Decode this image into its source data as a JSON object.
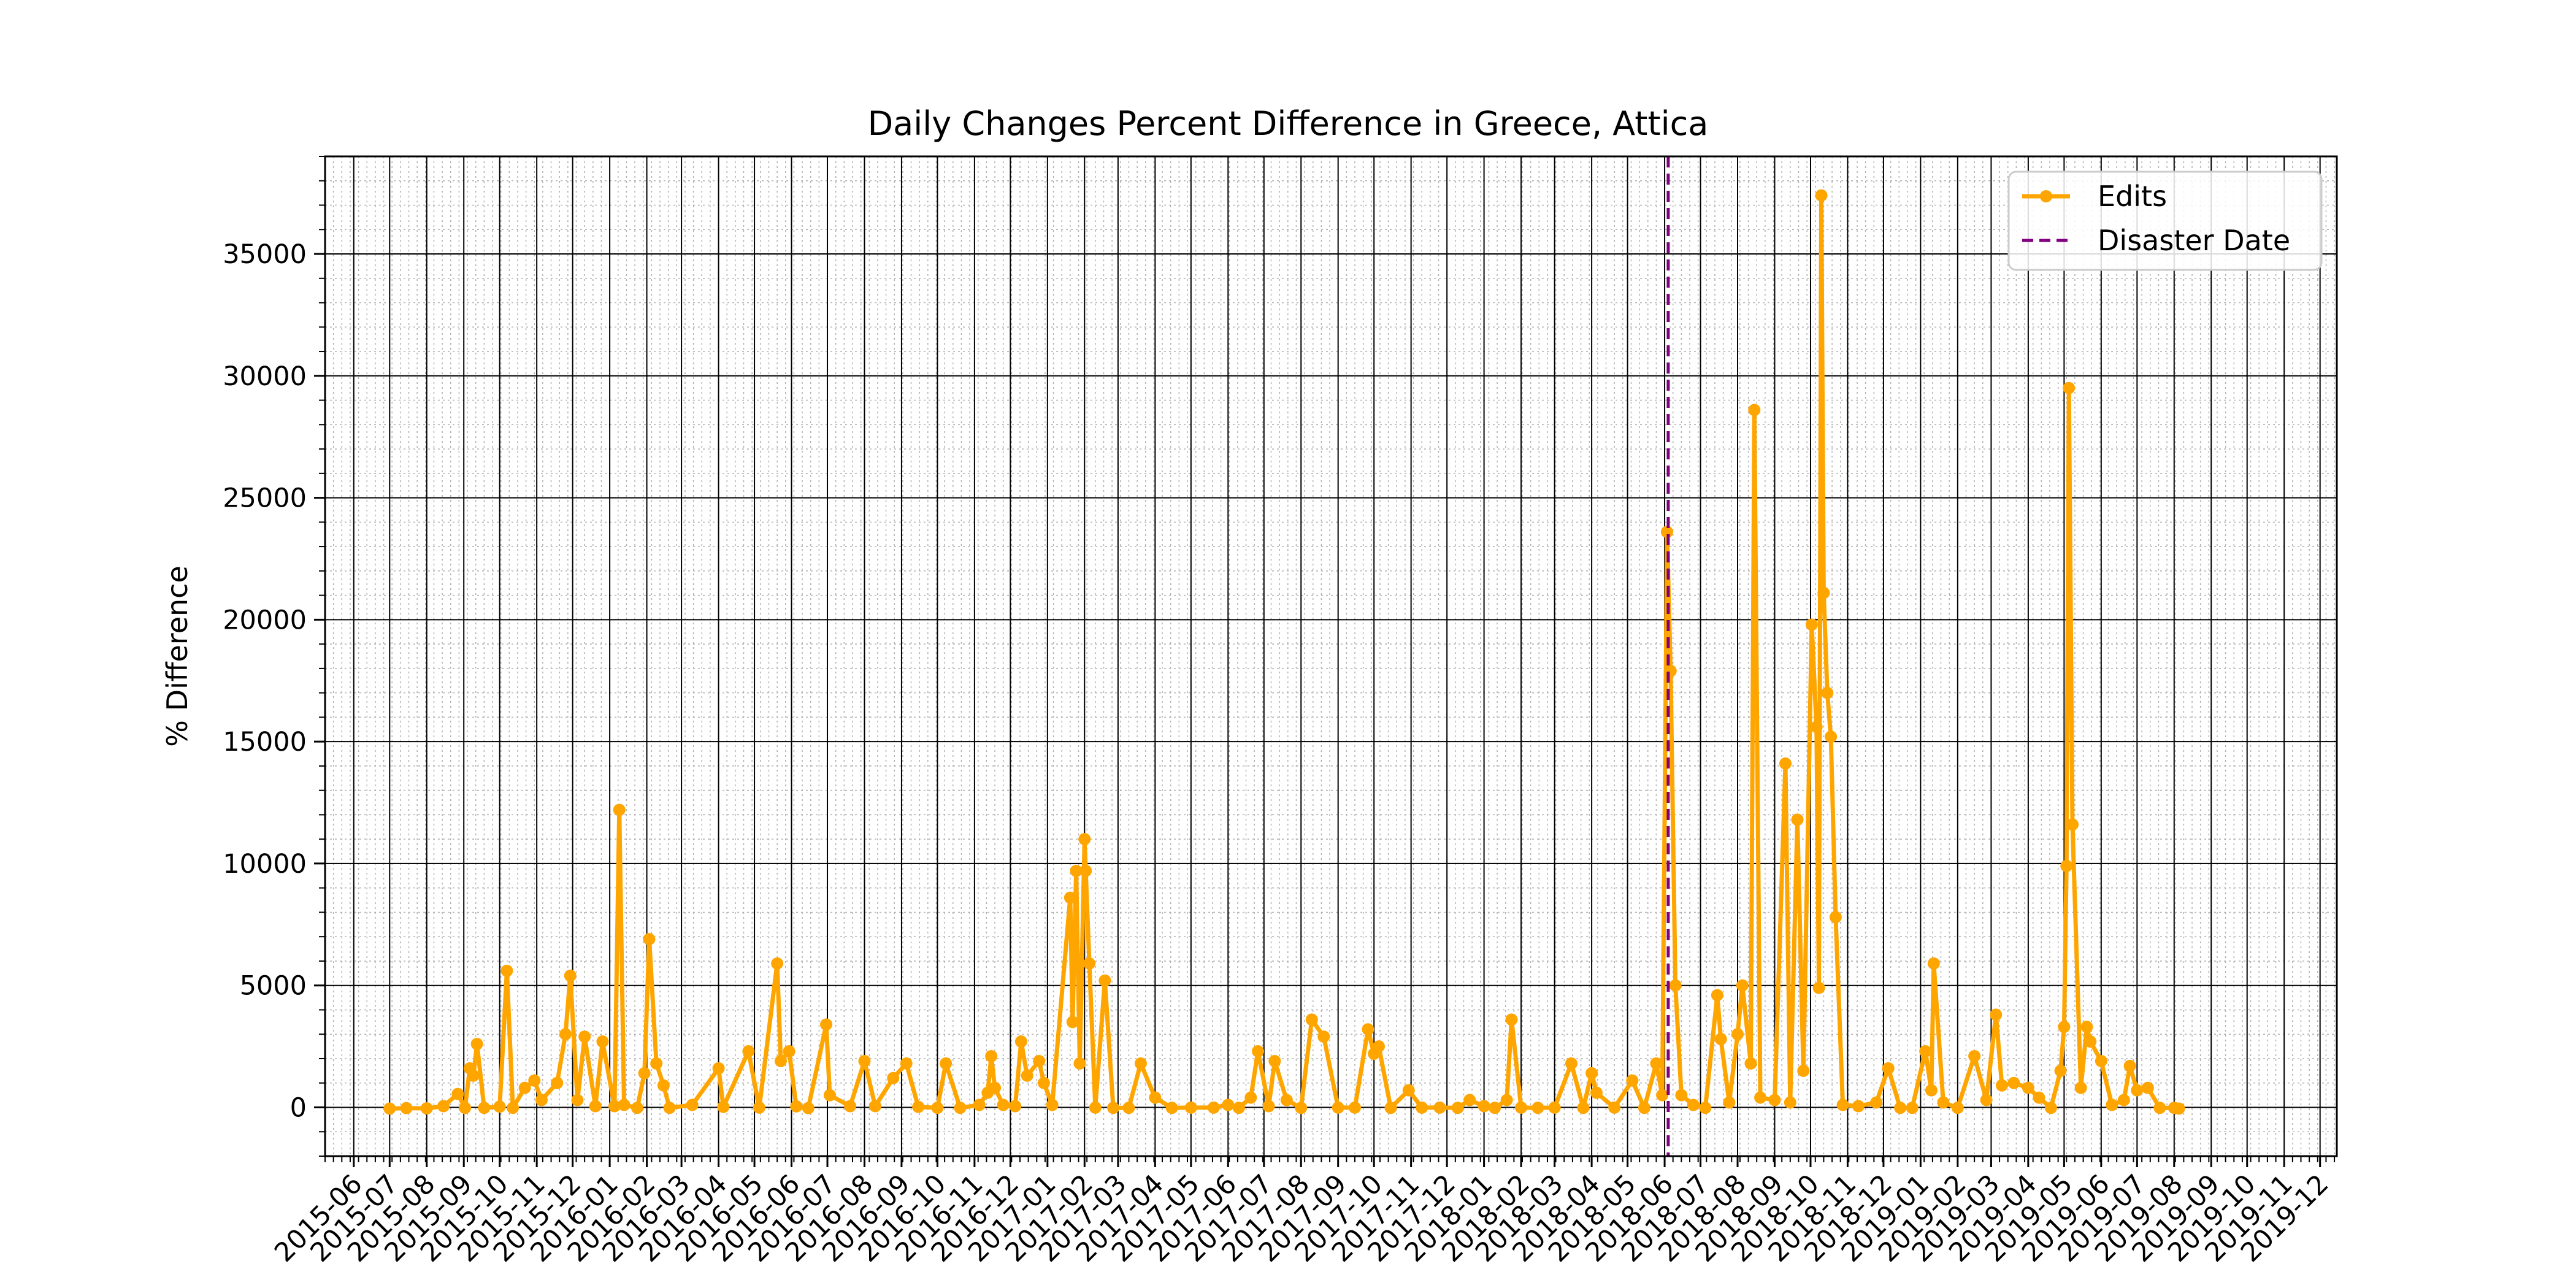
{
  "chart_data": {
    "type": "line",
    "title": "Daily Changes Percent Difference in Greece, Attica",
    "xlabel": "",
    "ylabel": "% Difference",
    "xlim": [
      "2015-05-08",
      "2019-12-15"
    ],
    "ylim": [
      -2000,
      39000
    ],
    "y_ticks": [
      0,
      5000,
      10000,
      15000,
      20000,
      25000,
      30000,
      35000
    ],
    "x_ticks": [
      "2015-06",
      "2015-07",
      "2015-08",
      "2015-09",
      "2015-10",
      "2015-11",
      "2015-12",
      "2016-01",
      "2016-02",
      "2016-03",
      "2016-04",
      "2016-05",
      "2016-06",
      "2016-07",
      "2016-08",
      "2016-09",
      "2016-10",
      "2016-11",
      "2016-12",
      "2017-01",
      "2017-02",
      "2017-03",
      "2017-04",
      "2017-05",
      "2017-06",
      "2017-07",
      "2017-08",
      "2017-09",
      "2017-10",
      "2017-11",
      "2017-12",
      "2018-01",
      "2018-02",
      "2018-03",
      "2018-04",
      "2018-05",
      "2018-06",
      "2018-07",
      "2018-08",
      "2018-09",
      "2018-10",
      "2018-11",
      "2018-12",
      "2019-01",
      "2019-02",
      "2019-03",
      "2019-04",
      "2019-05",
      "2019-06",
      "2019-07",
      "2019-08",
      "2019-09",
      "2019-10",
      "2019-11",
      "2019-12"
    ],
    "grid": true,
    "legend_position": "top-right",
    "series": [
      {
        "name": "Edits",
        "color": "#FFA500",
        "marker": "circle",
        "points": [
          [
            "2015-07-01",
            -50
          ],
          [
            "2015-07-15",
            -30
          ],
          [
            "2015-08-01",
            -40
          ],
          [
            "2015-08-15",
            50
          ],
          [
            "2015-08-27",
            550
          ],
          [
            "2015-09-02",
            -20
          ],
          [
            "2015-09-06",
            1600
          ],
          [
            "2015-09-09",
            1300
          ],
          [
            "2015-09-12",
            2600
          ],
          [
            "2015-09-18",
            -20
          ],
          [
            "2015-10-01",
            30
          ],
          [
            "2015-10-07",
            5600
          ],
          [
            "2015-10-12",
            -20
          ],
          [
            "2015-10-22",
            800
          ],
          [
            "2015-10-30",
            1100
          ],
          [
            "2015-11-05",
            300
          ],
          [
            "2015-11-18",
            1000
          ],
          [
            "2015-11-25",
            3000
          ],
          [
            "2015-11-29",
            5400
          ],
          [
            "2015-12-05",
            300
          ],
          [
            "2015-12-11",
            2900
          ],
          [
            "2015-12-20",
            50
          ],
          [
            "2015-12-26",
            2700
          ],
          [
            "2016-01-05",
            50
          ],
          [
            "2016-01-09",
            12200
          ],
          [
            "2016-01-13",
            100
          ],
          [
            "2016-01-24",
            -20
          ],
          [
            "2016-01-30",
            1400
          ],
          [
            "2016-02-03",
            6900
          ],
          [
            "2016-02-09",
            1800
          ],
          [
            "2016-02-15",
            900
          ],
          [
            "2016-02-20",
            -20
          ],
          [
            "2016-03-10",
            100
          ],
          [
            "2016-04-01",
            1600
          ],
          [
            "2016-04-05",
            20
          ],
          [
            "2016-04-26",
            2300
          ],
          [
            "2016-05-05",
            -10
          ],
          [
            "2016-05-20",
            5900
          ],
          [
            "2016-05-23",
            1900
          ],
          [
            "2016-05-30",
            2300
          ],
          [
            "2016-06-05",
            40
          ],
          [
            "2016-06-15",
            -30
          ],
          [
            "2016-06-30",
            3400
          ],
          [
            "2016-07-03",
            500
          ],
          [
            "2016-07-20",
            50
          ],
          [
            "2016-08-01",
            1900
          ],
          [
            "2016-08-10",
            50
          ],
          [
            "2016-08-25",
            1200
          ],
          [
            "2016-09-05",
            1800
          ],
          [
            "2016-09-15",
            20
          ],
          [
            "2016-10-01",
            -20
          ],
          [
            "2016-10-08",
            1800
          ],
          [
            "2016-10-20",
            -20
          ],
          [
            "2016-11-05",
            100
          ],
          [
            "2016-11-12",
            600
          ],
          [
            "2016-11-15",
            2100
          ],
          [
            "2016-11-18",
            800
          ],
          [
            "2016-11-25",
            100
          ],
          [
            "2016-12-05",
            50
          ],
          [
            "2016-12-10",
            2700
          ],
          [
            "2016-12-15",
            1300
          ],
          [
            "2016-12-25",
            1900
          ],
          [
            "2016-12-29",
            1000
          ],
          [
            "2017-01-05",
            100
          ],
          [
            "2017-01-20",
            8600
          ],
          [
            "2017-01-22",
            3500
          ],
          [
            "2017-01-25",
            9700
          ],
          [
            "2017-01-28",
            1800
          ],
          [
            "2017-02-01",
            11000
          ],
          [
            "2017-02-02",
            9700
          ],
          [
            "2017-02-05",
            5900
          ],
          [
            "2017-02-10",
            -10
          ],
          [
            "2017-02-18",
            5200
          ],
          [
            "2017-02-25",
            -20
          ],
          [
            "2017-03-10",
            -20
          ],
          [
            "2017-03-20",
            1800
          ],
          [
            "2017-04-01",
            400
          ],
          [
            "2017-04-15",
            -20
          ],
          [
            "2017-05-01",
            -10
          ],
          [
            "2017-05-20",
            -10
          ],
          [
            "2017-06-01",
            100
          ],
          [
            "2017-06-10",
            -20
          ],
          [
            "2017-06-20",
            400
          ],
          [
            "2017-06-26",
            2300
          ],
          [
            "2017-07-05",
            50
          ],
          [
            "2017-07-10",
            1900
          ],
          [
            "2017-07-20",
            300
          ],
          [
            "2017-08-01",
            -20
          ],
          [
            "2017-08-10",
            3600
          ],
          [
            "2017-08-20",
            2900
          ],
          [
            "2017-09-01",
            -10
          ],
          [
            "2017-09-15",
            -10
          ],
          [
            "2017-09-26",
            3200
          ],
          [
            "2017-10-01",
            2200
          ],
          [
            "2017-10-05",
            2500
          ],
          [
            "2017-10-15",
            -20
          ],
          [
            "2017-10-30",
            700
          ],
          [
            "2017-11-10",
            -10
          ],
          [
            "2017-11-25",
            -10
          ],
          [
            "2017-12-10",
            -20
          ],
          [
            "2017-12-20",
            300
          ],
          [
            "2018-01-01",
            50
          ],
          [
            "2018-01-10",
            -20
          ],
          [
            "2018-01-20",
            300
          ],
          [
            "2018-01-24",
            3600
          ],
          [
            "2018-02-01",
            -10
          ],
          [
            "2018-02-15",
            -20
          ],
          [
            "2018-03-01",
            -10
          ],
          [
            "2018-03-15",
            1800
          ],
          [
            "2018-03-25",
            -20
          ],
          [
            "2018-04-01",
            1400
          ],
          [
            "2018-04-05",
            600
          ],
          [
            "2018-04-20",
            -10
          ],
          [
            "2018-05-05",
            1100
          ],
          [
            "2018-05-15",
            -20
          ],
          [
            "2018-05-25",
            1800
          ],
          [
            "2018-05-30",
            500
          ],
          [
            "2018-06-03",
            23600
          ],
          [
            "2018-06-06",
            17900
          ],
          [
            "2018-06-10",
            5000
          ],
          [
            "2018-06-15",
            500
          ],
          [
            "2018-06-25",
            100
          ],
          [
            "2018-07-05",
            -20
          ],
          [
            "2018-07-15",
            4600
          ],
          [
            "2018-07-18",
            2800
          ],
          [
            "2018-07-25",
            200
          ],
          [
            "2018-08-01",
            3000
          ],
          [
            "2018-08-05",
            5000
          ],
          [
            "2018-08-12",
            1800
          ],
          [
            "2018-08-15",
            28600
          ],
          [
            "2018-08-20",
            400
          ],
          [
            "2018-09-01",
            300
          ],
          [
            "2018-09-10",
            14100
          ],
          [
            "2018-09-14",
            200
          ],
          [
            "2018-09-20",
            11800
          ],
          [
            "2018-09-25",
            1500
          ],
          [
            "2018-10-02",
            19800
          ],
          [
            "2018-10-06",
            15600
          ],
          [
            "2018-10-08",
            4900
          ],
          [
            "2018-10-10",
            37400
          ],
          [
            "2018-10-12",
            21100
          ],
          [
            "2018-10-15",
            17000
          ],
          [
            "2018-10-18",
            15200
          ],
          [
            "2018-10-22",
            7800
          ],
          [
            "2018-10-28",
            100
          ],
          [
            "2018-11-10",
            50
          ],
          [
            "2018-11-25",
            200
          ],
          [
            "2018-12-05",
            1600
          ],
          [
            "2018-12-15",
            -20
          ],
          [
            "2018-12-25",
            -20
          ],
          [
            "2019-01-05",
            2300
          ],
          [
            "2019-01-10",
            700
          ],
          [
            "2019-01-12",
            5900
          ],
          [
            "2019-01-20",
            200
          ],
          [
            "2019-02-01",
            -20
          ],
          [
            "2019-02-15",
            2100
          ],
          [
            "2019-02-25",
            300
          ],
          [
            "2019-03-05",
            3800
          ],
          [
            "2019-03-10",
            900
          ],
          [
            "2019-03-20",
            1000
          ],
          [
            "2019-04-01",
            800
          ],
          [
            "2019-04-10",
            400
          ],
          [
            "2019-04-20",
            -20
          ],
          [
            "2019-04-28",
            1500
          ],
          [
            "2019-05-01",
            3300
          ],
          [
            "2019-05-03",
            9900
          ],
          [
            "2019-05-05",
            29500
          ],
          [
            "2019-05-08",
            11600
          ],
          [
            "2019-05-15",
            800
          ],
          [
            "2019-05-20",
            3300
          ],
          [
            "2019-05-23",
            2700
          ],
          [
            "2019-06-01",
            1900
          ],
          [
            "2019-06-10",
            100
          ],
          [
            "2019-06-20",
            300
          ],
          [
            "2019-06-25",
            1700
          ],
          [
            "2019-07-01",
            700
          ],
          [
            "2019-07-10",
            800
          ],
          [
            "2019-07-20",
            -20
          ],
          [
            "2019-08-01",
            -20
          ],
          [
            "2019-08-05",
            -50
          ]
        ]
      }
    ],
    "vertical_line": {
      "name": "Disaster Date",
      "date": "2018-06-04",
      "color": "#800080",
      "style": "dashed"
    }
  }
}
